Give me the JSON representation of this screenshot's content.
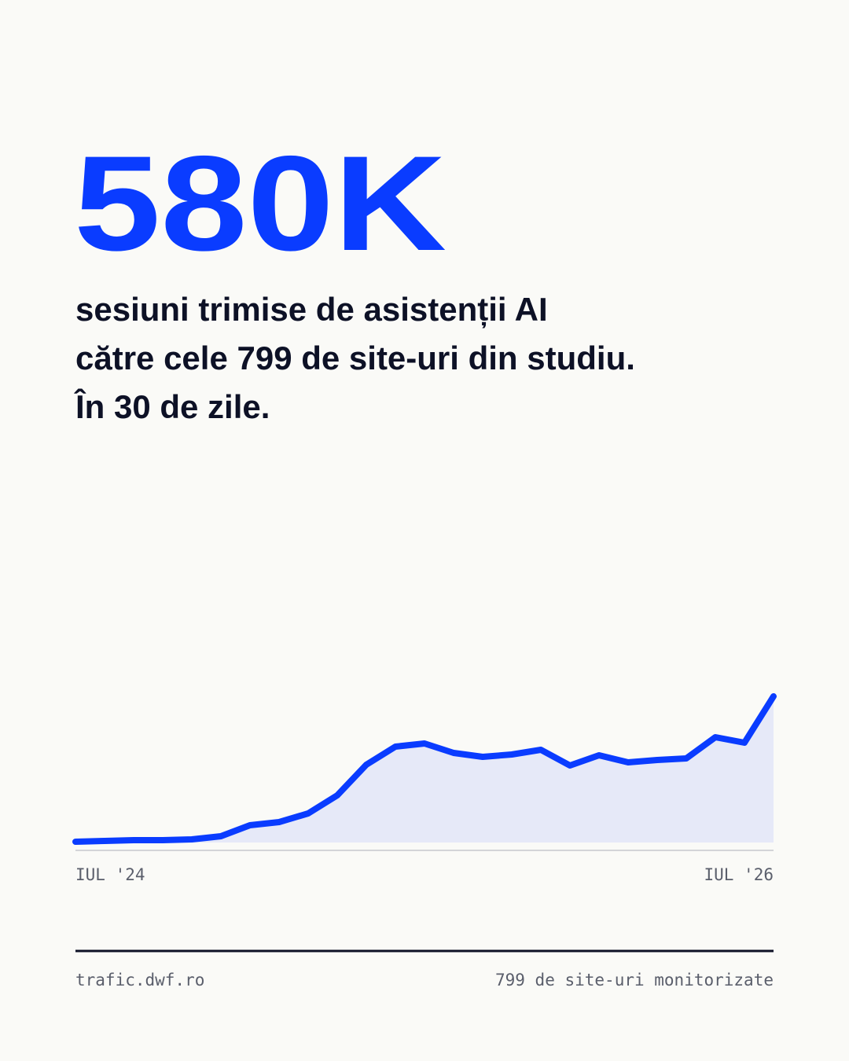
{
  "headline": "580K",
  "subtitle": [
    "sesiuni trimise de asistenții AI",
    "către cele 799 de site-uri din studiu.",
    "În 30 de zile."
  ],
  "chart_data": {
    "type": "line",
    "categories": [
      "IUL '24",
      null,
      null,
      null,
      null,
      null,
      null,
      null,
      null,
      null,
      null,
      null,
      null,
      null,
      null,
      null,
      null,
      null,
      null,
      null,
      null,
      null,
      null,
      null,
      "IUL '26"
    ],
    "values": [
      1,
      2,
      3,
      3,
      4,
      8,
      22,
      26,
      37,
      60,
      99,
      122,
      126,
      114,
      109,
      112,
      118,
      98,
      111,
      102,
      105,
      107,
      134,
      127,
      186
    ],
    "color": "#0a3cff",
    "fill": "#e6e9f8"
  },
  "footer": {
    "left": "trafic.dwf.ro",
    "right": "799 de site-uri monitorizate"
  }
}
